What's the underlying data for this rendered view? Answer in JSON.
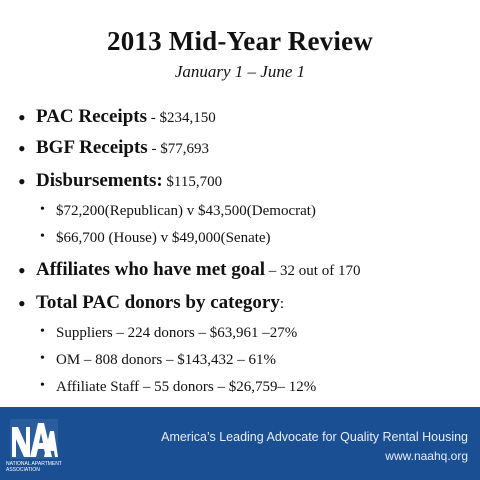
{
  "slide": {
    "title": "2013 Mid-Year Review",
    "subtitle": "January 1 – June 1"
  },
  "items": [
    {
      "strong": "PAC Receipts",
      "rest": " - $234,150"
    },
    {
      "strong": "BGF Receipts",
      "rest": " - $77,693"
    },
    {
      "strong": "Disbursements:",
      "rest": " $115,700"
    },
    {
      "text": "$72,200(Republican) v  $43,500(Democrat)"
    },
    {
      "text": "$66,700 (House) v $49,000(Senate)"
    },
    {
      "strong": "Affiliates who have met goal",
      "rest": " – 32 out of 170"
    },
    {
      "strong": "Total PAC donors by category",
      "rest": ":"
    },
    {
      "text": "Suppliers – 224 donors – $63,961 –27%"
    },
    {
      "text": "OM – 808 donors  – $143,432 – 61%"
    },
    {
      "text": "Affiliate Staff – 55 donors – $26,759– 12%"
    }
  ],
  "footer": {
    "logo_text": "National Apartment Association",
    "tagline": "America’s Leading Advocate for Quality Rental Housing",
    "website": "www.naahq.org",
    "background_color": "#1a4f93"
  }
}
